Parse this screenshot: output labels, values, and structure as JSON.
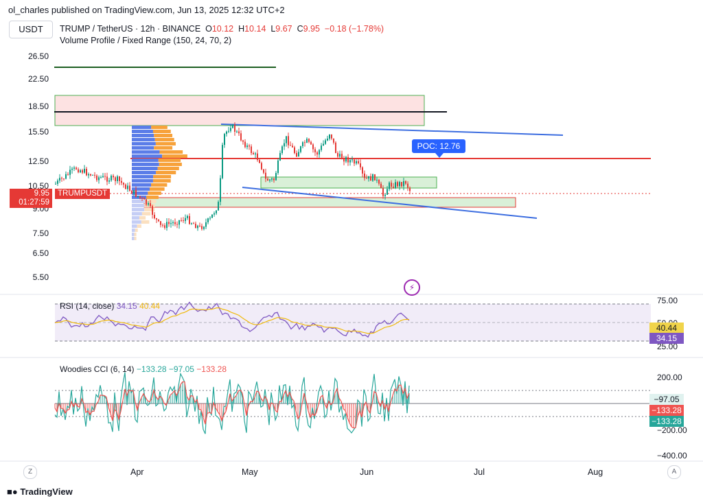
{
  "header": {
    "published": "ol_charles published on TradingView.com, Jun 13, 2025 12:32 UTC+2",
    "currency_button": "USDT"
  },
  "legend": {
    "symbol": "TRUMP / TetherUS · 12h · BINANCE",
    "o_label": "O",
    "o_value": "10.12",
    "h_label": "H",
    "h_value": "10.14",
    "l_label": "L",
    "l_value": "9.67",
    "c_label": "C",
    "c_value": "9.95",
    "change": "−0.18 (−1.78%)",
    "indicator": "Volume Profile / Fixed Range (150, 24, 70, 2)"
  },
  "price_axis": [
    "26.50",
    "22.50",
    "18.50",
    "15.50",
    "12.50",
    "10.50",
    "9.00",
    "7.50",
    "6.50",
    "5.50"
  ],
  "price_tag": {
    "price": "9.95",
    "countdown": "01:27:59",
    "symbol": "TRUMPUSDT"
  },
  "poc": {
    "label": "POC: 12.76"
  },
  "rsi": {
    "title": "RSI (14, close)",
    "value1": "34.15",
    "value2": "40.44",
    "axis": [
      "75.00",
      "50.00",
      "25.00"
    ],
    "badge_yellow": "40.44",
    "badge_purple": "34.15"
  },
  "cci": {
    "title": "Woodies CCI (6, 14)",
    "value1": "−133.28",
    "value2": "−97.05",
    "value3": "−133.28",
    "axis": [
      "200.00",
      "−200.00",
      "−400.00"
    ],
    "badge_green": "−97.05",
    "badge_red": "−133.28",
    "badge_teal": "−133.28"
  },
  "time_axis": [
    "Apr",
    "May",
    "Jun",
    "Jul",
    "Aug"
  ],
  "corner": {
    "left": "Z",
    "right": "A"
  },
  "brand": "TradingView",
  "colors": {
    "up": "#089981",
    "down": "#e53935",
    "trendline": "#3d6ee0",
    "poc_line": "#e53935",
    "rsi_line": "#7e57c2",
    "rsi_ma": "#f0b90b",
    "cci_green": "#26a69a",
    "cci_red": "#ef5350"
  }
}
